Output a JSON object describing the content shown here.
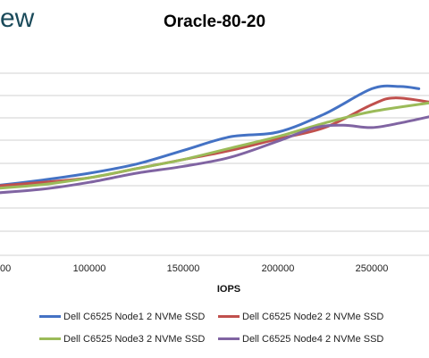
{
  "logo": {
    "text": "ew"
  },
  "chart_data": {
    "type": "line",
    "title": "Oracle-80-20",
    "xlabel": "IOPS",
    "ylabel": "",
    "x_ticks": [
      "00",
      "100000",
      "150000",
      "200000",
      "250000"
    ],
    "xlim": [
      45000,
      282000
    ],
    "ylim": [
      0,
      9
    ],
    "grid": true,
    "legend": "bottom",
    "series": [
      {
        "name": "Dell C6525 Node1 2 NVMe SSD",
        "color": "#4472c4",
        "points": [
          [
            45000,
            3.0
          ],
          [
            75000,
            3.3
          ],
          [
            100000,
            3.6
          ],
          [
            125000,
            4.0
          ],
          [
            150000,
            4.6
          ],
          [
            175000,
            5.2
          ],
          [
            200000,
            5.4
          ],
          [
            225000,
            6.2
          ],
          [
            250000,
            7.3
          ],
          [
            265000,
            7.4
          ],
          [
            275000,
            7.3
          ]
        ]
      },
      {
        "name": "Dell C6525 Node2 2 NVMe SSD",
        "color": "#c0504d",
        "points": [
          [
            45000,
            3.0
          ],
          [
            75000,
            3.2
          ],
          [
            100000,
            3.4
          ],
          [
            125000,
            3.8
          ],
          [
            150000,
            4.2
          ],
          [
            175000,
            4.6
          ],
          [
            200000,
            5.1
          ],
          [
            225000,
            5.6
          ],
          [
            250000,
            6.6
          ],
          [
            262000,
            6.9
          ],
          [
            282000,
            6.7
          ]
        ]
      },
      {
        "name": "Dell C6525 Node3 2 NVMe SSD",
        "color": "#9bbb59",
        "points": [
          [
            45000,
            2.9
          ],
          [
            75000,
            3.1
          ],
          [
            100000,
            3.4
          ],
          [
            125000,
            3.8
          ],
          [
            150000,
            4.2
          ],
          [
            175000,
            4.7
          ],
          [
            200000,
            5.2
          ],
          [
            225000,
            5.8
          ],
          [
            250000,
            6.3
          ],
          [
            282000,
            6.7
          ]
        ]
      },
      {
        "name": "Dell C6525 Node4 2 NVMe SSD",
        "color": "#8064a2",
        "points": [
          [
            45000,
            2.7
          ],
          [
            75000,
            2.9
          ],
          [
            100000,
            3.2
          ],
          [
            125000,
            3.6
          ],
          [
            150000,
            3.9
          ],
          [
            175000,
            4.3
          ],
          [
            200000,
            5.0
          ],
          [
            220000,
            5.6
          ],
          [
            235000,
            5.7
          ],
          [
            250000,
            5.6
          ],
          [
            265000,
            5.8
          ],
          [
            282000,
            6.1
          ]
        ]
      }
    ]
  }
}
